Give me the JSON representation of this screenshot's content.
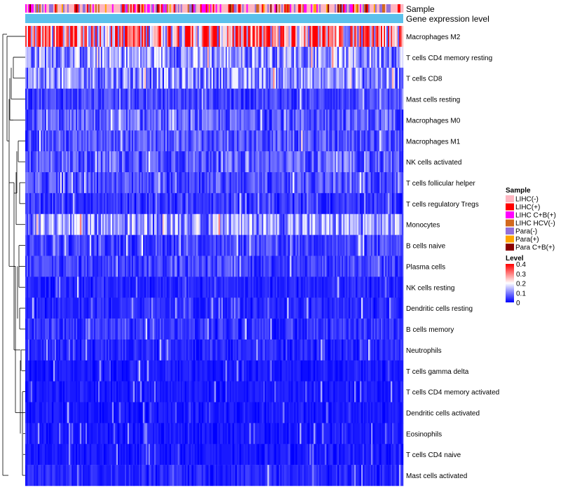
{
  "chart_data": {
    "type": "heatmap",
    "title": "",
    "annotations": [
      "Sample",
      "Gene expression level"
    ],
    "rows": [
      "Macrophages M2",
      "T cells CD4 memory resting",
      "T cells CD8",
      "Mast cells resting",
      "Macrophages M0",
      "Macrophages M1",
      "NK cells activated",
      "T cells follicular helper",
      "T cells regulatory  Tregs",
      "Monocytes",
      "B cells naive",
      "Plasma cells",
      "NK cells resting",
      "Dendritic cells resting",
      "B cells memory",
      "Neutrophils",
      "T cells gamma delta",
      "T cells CD4 memory activated",
      "Dendritic cells activated",
      "Eosinophils",
      "T cells CD4 naive",
      "Mast cells activated"
    ],
    "row_mean_level": [
      0.3,
      0.12,
      0.11,
      0.05,
      0.07,
      0.06,
      0.07,
      0.06,
      0.04,
      0.12,
      0.05,
      0.05,
      0.03,
      0.03,
      0.04,
      0.03,
      0.02,
      0.02,
      0.02,
      0.02,
      0.02,
      0.03
    ],
    "n_columns": 270,
    "sample_legend": {
      "title": "Sample",
      "items": [
        {
          "label": "LIHC(-)",
          "color": "#ffb6c1"
        },
        {
          "label": "LIHC(+)",
          "color": "#ff0000"
        },
        {
          "label": "LIHC C+B(+)",
          "color": "#ff00ff"
        },
        {
          "label": "LIHC HCV(-)",
          "color": "#d2691e"
        },
        {
          "label": "Para(-)",
          "color": "#9370db"
        },
        {
          "label": "Para(+)",
          "color": "#ffa500"
        },
        {
          "label": "Para C+B(+)",
          "color": "#8b0000"
        }
      ]
    },
    "level_legend": {
      "title": "Level",
      "ticks": [
        "0.4",
        "0.3",
        "0.2",
        "0.1",
        "0"
      ],
      "range": [
        0,
        0.4
      ],
      "colors": [
        "#0000ff",
        "#ffffff",
        "#ff0000"
      ]
    },
    "expression_bar_color": "#5bc0eb"
  }
}
